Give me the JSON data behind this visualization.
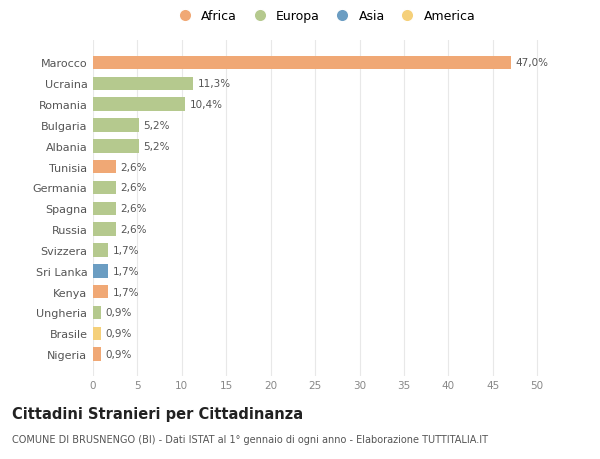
{
  "countries": [
    "Nigeria",
    "Brasile",
    "Ungheria",
    "Kenya",
    "Sri Lanka",
    "Svizzera",
    "Russia",
    "Spagna",
    "Germania",
    "Tunisia",
    "Albania",
    "Bulgaria",
    "Romania",
    "Ucraina",
    "Marocco"
  ],
  "values": [
    0.9,
    0.9,
    0.9,
    1.7,
    1.7,
    1.7,
    2.6,
    2.6,
    2.6,
    2.6,
    5.2,
    5.2,
    10.4,
    11.3,
    47.0
  ],
  "labels": [
    "0,9%",
    "0,9%",
    "0,9%",
    "1,7%",
    "1,7%",
    "1,7%",
    "2,6%",
    "2,6%",
    "2,6%",
    "2,6%",
    "5,2%",
    "5,2%",
    "10,4%",
    "11,3%",
    "47,0%"
  ],
  "bar_colors": [
    "#F0A875",
    "#F5D07A",
    "#B5C98E",
    "#F0A875",
    "#6B9DC2",
    "#B5C98E",
    "#B5C98E",
    "#B5C98E",
    "#B5C98E",
    "#F0A875",
    "#B5C98E",
    "#B5C98E",
    "#B5C98E",
    "#B5C98E",
    "#F0A875"
  ],
  "xlim": [
    0,
    52
  ],
  "xticks": [
    0,
    5,
    10,
    15,
    20,
    25,
    30,
    35,
    40,
    45,
    50
  ],
  "title": "Cittadini Stranieri per Cittadinanza",
  "subtitle": "COMUNE DI BRUSNENGO (BI) - Dati ISTAT al 1° gennaio di ogni anno - Elaborazione TUTTITALIA.IT",
  "legend_labels": [
    "Africa",
    "Europa",
    "Asia",
    "America"
  ],
  "legend_colors": [
    "#F0A875",
    "#B5C98E",
    "#6B9DC2",
    "#F5D07A"
  ],
  "background_color": "#FFFFFF",
  "grid_color": "#E8E8E8"
}
